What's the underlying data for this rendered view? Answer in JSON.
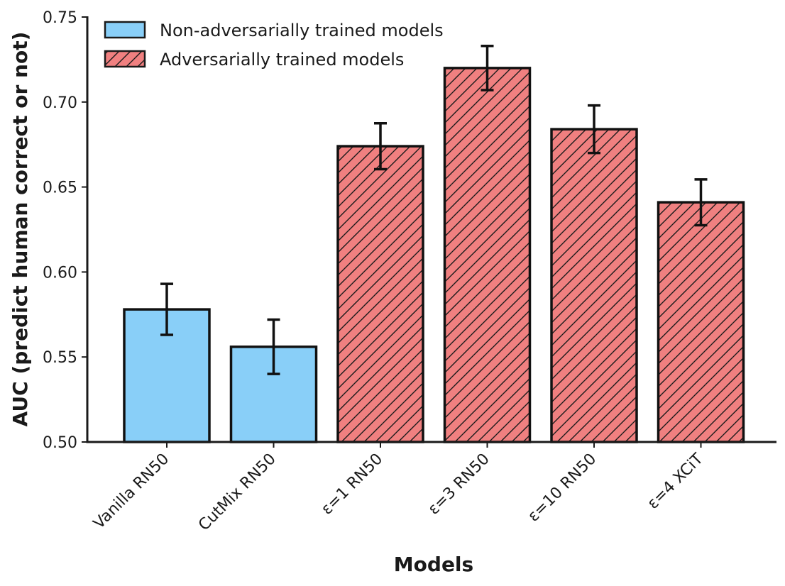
{
  "chart_data": {
    "type": "bar",
    "title": "",
    "xlabel": "Models",
    "ylabel": "AUC (predict human correct or not)",
    "ylim": [
      0.5,
      0.75
    ],
    "yticks": [
      "0.50",
      "0.55",
      "0.60",
      "0.65",
      "0.70",
      "0.75"
    ],
    "categories": [
      "Vanilla RN50",
      "CutMix RN50",
      "ε=1 RN50",
      "ε=3 RN50",
      "ε=10 RN50",
      "ε=4 XCiT"
    ],
    "values": [
      0.578,
      0.556,
      0.674,
      0.72,
      0.684,
      0.641
    ],
    "errors": [
      0.015,
      0.016,
      0.0135,
      0.013,
      0.014,
      0.0135
    ],
    "groups": [
      0,
      0,
      1,
      1,
      1,
      1
    ],
    "series": [
      {
        "name": "Non-adversarially trained models",
        "color": "#89cff8",
        "hatch": false
      },
      {
        "name": "Adversarially trained models",
        "color": "#f08080",
        "hatch": true
      }
    ],
    "legend": "top-left",
    "grid": false
  }
}
